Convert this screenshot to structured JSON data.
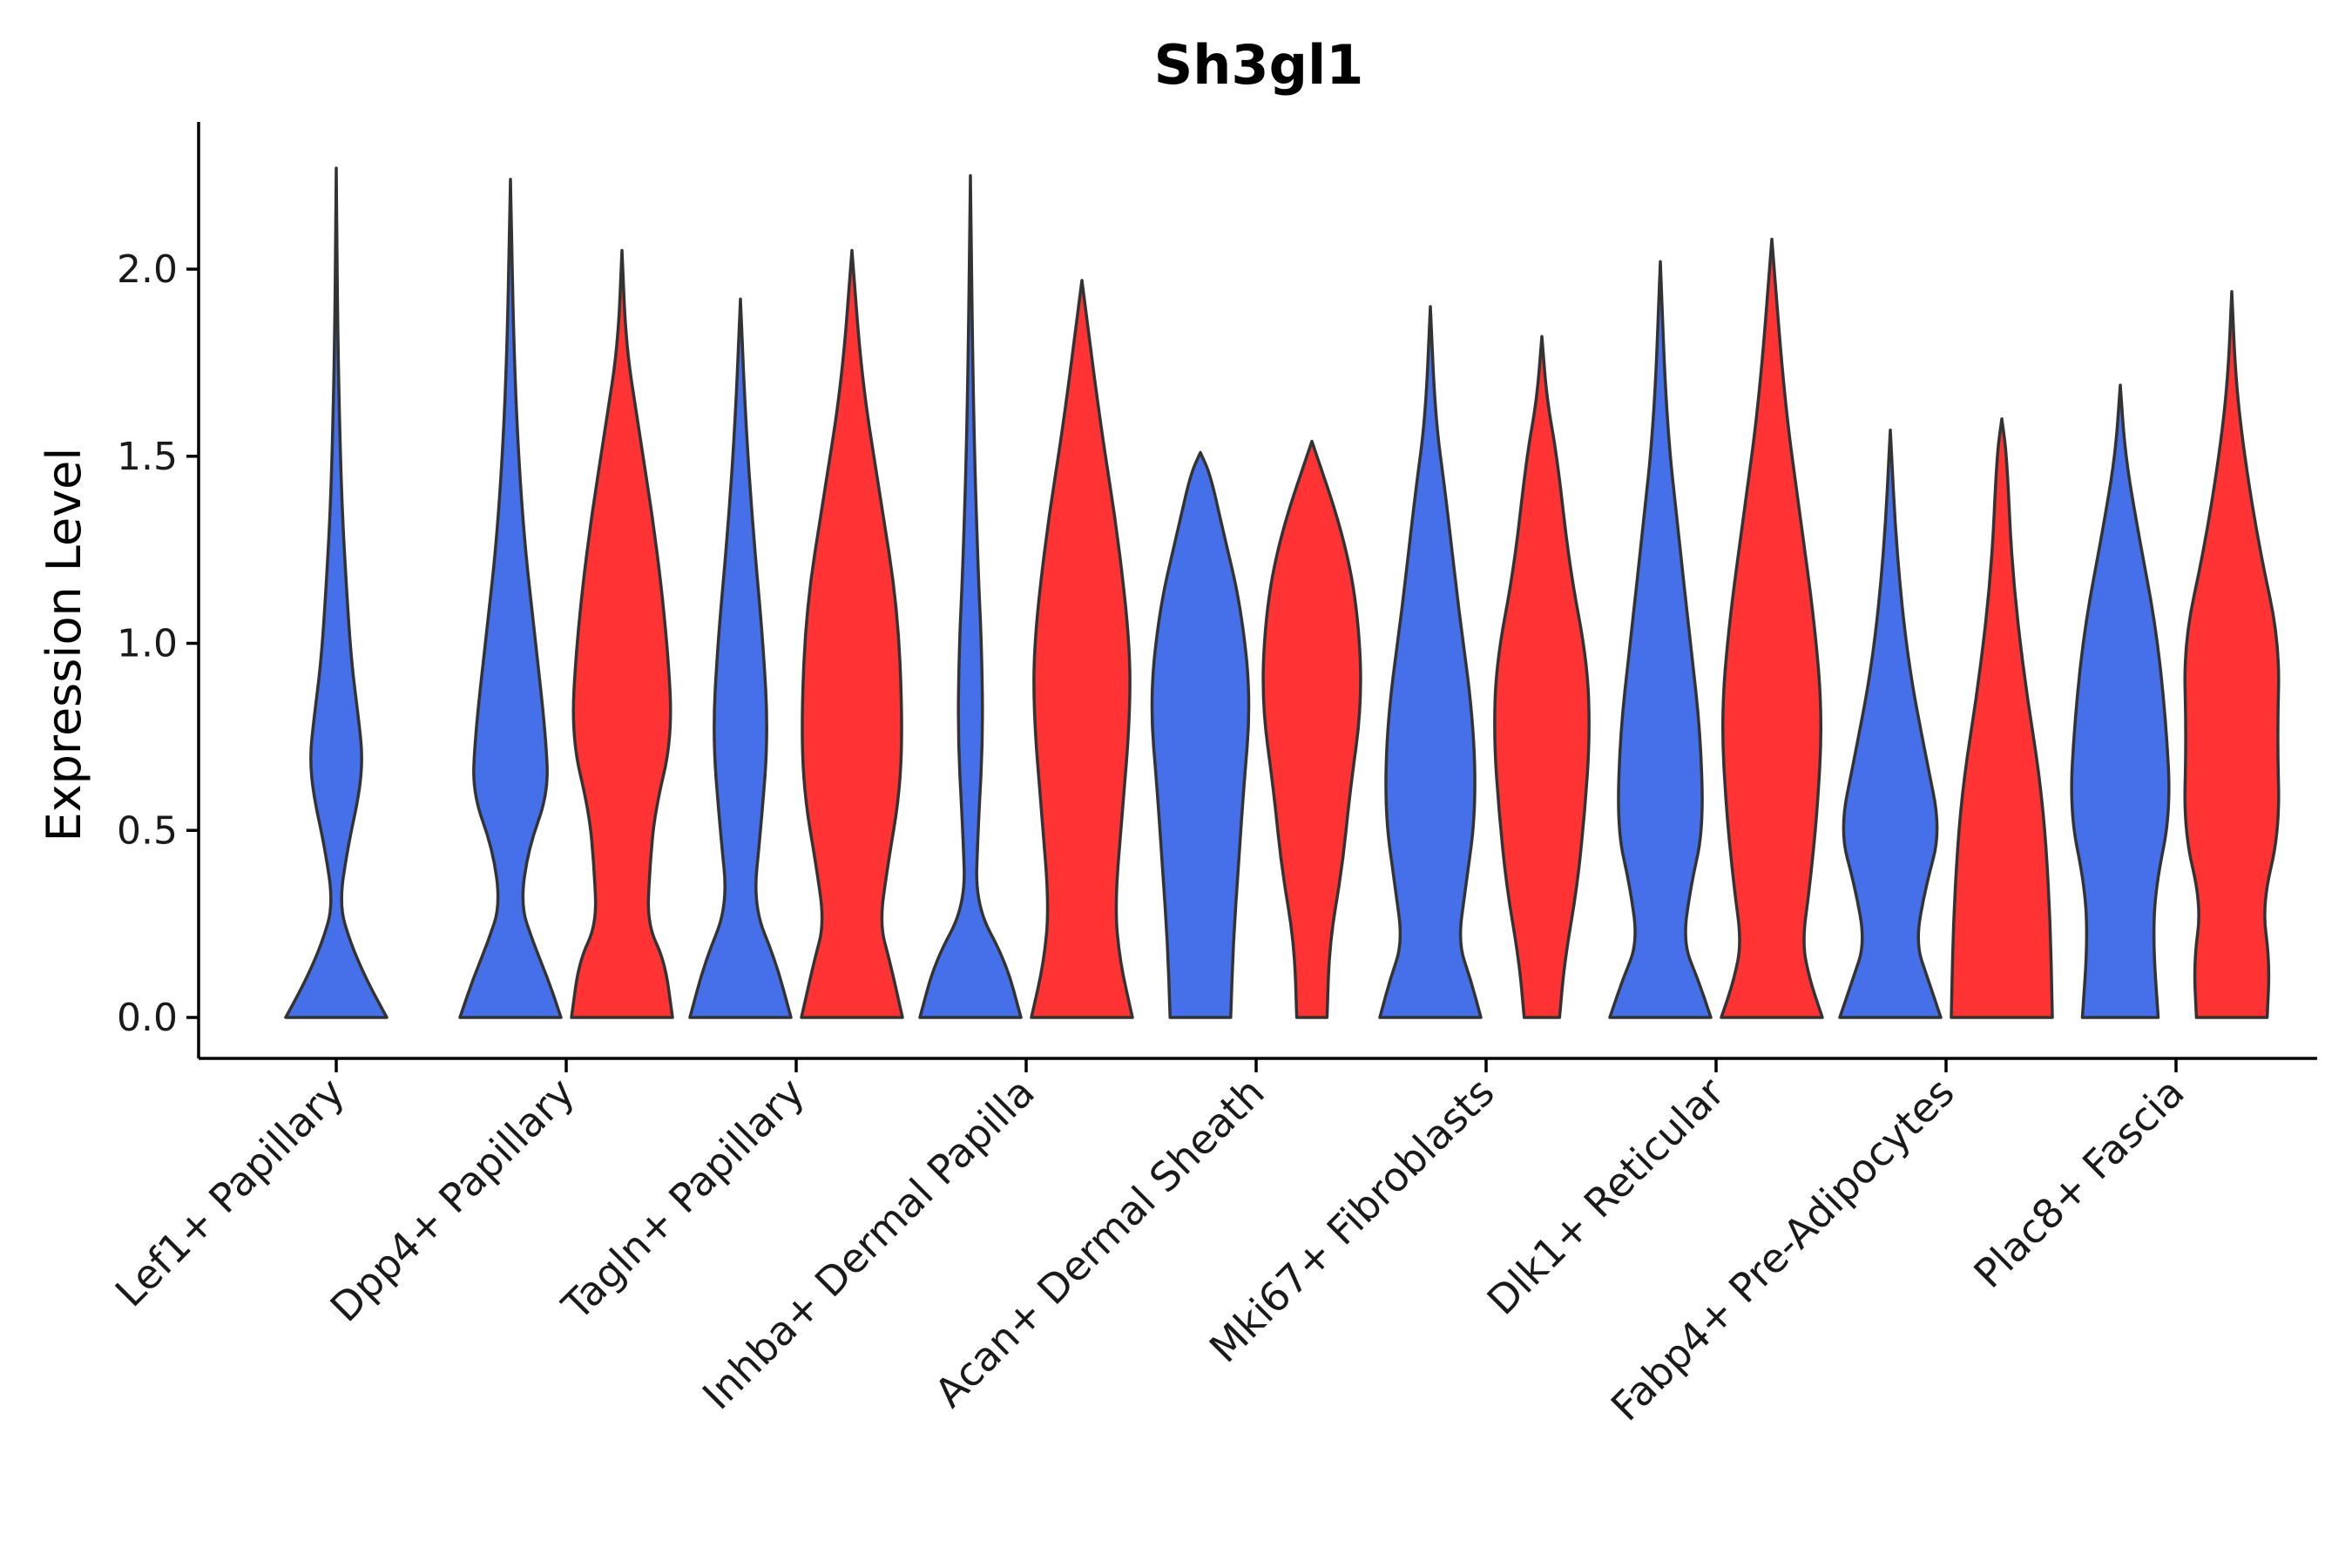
{
  "chart_data": {
    "type": "violin",
    "title": "Sh3gl1",
    "xlabel": "",
    "ylabel": "Expression Level",
    "ylim": [
      -0.12,
      2.4
    ],
    "yticks": [
      "0.0",
      "0.5",
      "1.0",
      "1.5",
      "2.0"
    ],
    "grid": false,
    "legend": "none",
    "colors": {
      "group1": "#4570EA",
      "group2": "#FF3333",
      "outline": "#333333"
    },
    "series": [
      {
        "name": "group1",
        "color": "#4570EA"
      },
      {
        "name": "group2",
        "color": "#FF3333"
      }
    ],
    "categories": [
      "Lef1+ Papillary",
      "Dpp4+ Papillary",
      "Tagln+ Papillary",
      "Inhba+ Dermal Papilla",
      "Acan+ Dermal Sheath",
      "Mki67+ Fibroblasts",
      "Dlk1+ Reticular",
      "Fabp4+ Pre-Adipocytes",
      "Plac8+ Fascia"
    ],
    "violins": [
      {
        "category": "Lef1+ Papillary",
        "series": "group1",
        "max": 2.27,
        "profile": [
          [
            0,
            1.0
          ],
          [
            0.1,
            0.6
          ],
          [
            0.2,
            0.28
          ],
          [
            0.3,
            0.06
          ],
          [
            0.45,
            0.22
          ],
          [
            0.6,
            0.46
          ],
          [
            0.7,
            0.52
          ],
          [
            0.8,
            0.44
          ],
          [
            0.95,
            0.3
          ],
          [
            1.15,
            0.2
          ],
          [
            1.4,
            0.1
          ],
          [
            1.8,
            0.03
          ],
          [
            2.27,
            0.0
          ]
        ]
      },
      {
        "category": "Dpp4+ Papillary",
        "series": "group1",
        "max": 2.24,
        "profile": [
          [
            0,
            1.0
          ],
          [
            0.1,
            0.75
          ],
          [
            0.2,
            0.45
          ],
          [
            0.3,
            0.2
          ],
          [
            0.45,
            0.35
          ],
          [
            0.6,
            0.75
          ],
          [
            0.75,
            0.7
          ],
          [
            1.0,
            0.5
          ],
          [
            1.3,
            0.25
          ],
          [
            1.7,
            0.08
          ],
          [
            2.24,
            0.0
          ]
        ]
      },
      {
        "category": "Dpp4+ Papillary",
        "series": "group2",
        "max": 2.05,
        "profile": [
          [
            0,
            1.0
          ],
          [
            0.15,
            0.85
          ],
          [
            0.25,
            0.5
          ],
          [
            0.4,
            0.55
          ],
          [
            0.55,
            0.65
          ],
          [
            0.75,
            1.0
          ],
          [
            1.0,
            0.9
          ],
          [
            1.3,
            0.65
          ],
          [
            1.6,
            0.3
          ],
          [
            1.8,
            0.08
          ],
          [
            2.05,
            0.0
          ]
        ]
      },
      {
        "category": "Tagln+ Papillary",
        "series": "group1",
        "max": 1.92,
        "profile": [
          [
            0,
            1.0
          ],
          [
            0.15,
            0.7
          ],
          [
            0.3,
            0.25
          ],
          [
            0.5,
            0.4
          ],
          [
            0.75,
            0.55
          ],
          [
            1.0,
            0.45
          ],
          [
            1.3,
            0.25
          ],
          [
            1.6,
            0.1
          ],
          [
            1.92,
            0.0
          ]
        ]
      },
      {
        "category": "Tagln+ Papillary",
        "series": "group2",
        "max": 2.05,
        "profile": [
          [
            0,
            1.0
          ],
          [
            0.15,
            0.75
          ],
          [
            0.25,
            0.55
          ],
          [
            0.4,
            0.7
          ],
          [
            0.6,
            0.95
          ],
          [
            0.8,
            1.0
          ],
          [
            1.1,
            0.9
          ],
          [
            1.4,
            0.55
          ],
          [
            1.7,
            0.2
          ],
          [
            2.05,
            0.0
          ]
        ]
      },
      {
        "category": "Inhba+ Dermal Papilla",
        "series": "group1",
        "max": 2.25,
        "profile": [
          [
            0,
            1.0
          ],
          [
            0.15,
            0.7
          ],
          [
            0.3,
            0.1
          ],
          [
            0.5,
            0.15
          ],
          [
            0.75,
            0.25
          ],
          [
            1.0,
            0.22
          ],
          [
            1.2,
            0.15
          ],
          [
            1.6,
            0.06
          ],
          [
            2.25,
            0.0
          ]
        ]
      },
      {
        "category": "Inhba+ Dermal Papilla",
        "series": "group2",
        "max": 1.97,
        "profile": [
          [
            0,
            1.0
          ],
          [
            0.15,
            0.75
          ],
          [
            0.3,
            0.65
          ],
          [
            0.55,
            0.8
          ],
          [
            0.8,
            0.95
          ],
          [
            1.0,
            0.95
          ],
          [
            1.3,
            0.7
          ],
          [
            1.6,
            0.35
          ],
          [
            1.97,
            0.0
          ]
        ]
      },
      {
        "category": "Acan+ Dermal Sheath",
        "series": "group1",
        "max": 1.51,
        "profile": [
          [
            0,
            0.6
          ],
          [
            0.2,
            0.65
          ],
          [
            0.4,
            0.75
          ],
          [
            0.6,
            0.85
          ],
          [
            0.85,
            1.0
          ],
          [
            1.1,
            0.8
          ],
          [
            1.3,
            0.45
          ],
          [
            1.45,
            0.2
          ],
          [
            1.51,
            0.0
          ]
        ]
      },
      {
        "category": "Acan+ Dermal Sheath",
        "series": "group2",
        "max": 1.54,
        "profile": [
          [
            0,
            0.3
          ],
          [
            0.2,
            0.35
          ],
          [
            0.4,
            0.6
          ],
          [
            0.6,
            0.75
          ],
          [
            0.85,
            1.0
          ],
          [
            1.1,
            0.9
          ],
          [
            1.3,
            0.6
          ],
          [
            1.54,
            0.0
          ]
        ]
      },
      {
        "category": "Mki67+ Fibroblasts",
        "series": "group1",
        "max": 1.9,
        "profile": [
          [
            0,
            1.0
          ],
          [
            0.1,
            0.8
          ],
          [
            0.2,
            0.55
          ],
          [
            0.35,
            0.7
          ],
          [
            0.55,
            0.9
          ],
          [
            0.8,
            0.85
          ],
          [
            1.1,
            0.55
          ],
          [
            1.4,
            0.3
          ],
          [
            1.6,
            0.1
          ],
          [
            1.9,
            0.0
          ]
        ]
      },
      {
        "category": "Mki67+ Fibroblasts",
        "series": "group2",
        "max": 1.82,
        "profile": [
          [
            0,
            0.35
          ],
          [
            0.15,
            0.45
          ],
          [
            0.35,
            0.7
          ],
          [
            0.55,
            0.85
          ],
          [
            0.75,
            0.95
          ],
          [
            0.95,
            0.9
          ],
          [
            1.2,
            0.55
          ],
          [
            1.5,
            0.3
          ],
          [
            1.65,
            0.1
          ],
          [
            1.82,
            0.0
          ]
        ]
      },
      {
        "category": "Dlk1+ Reticular",
        "series": "group1",
        "max": 2.02,
        "profile": [
          [
            0,
            1.0
          ],
          [
            0.1,
            0.75
          ],
          [
            0.2,
            0.45
          ],
          [
            0.35,
            0.6
          ],
          [
            0.5,
            0.85
          ],
          [
            0.75,
            0.8
          ],
          [
            1.0,
            0.6
          ],
          [
            1.3,
            0.35
          ],
          [
            1.6,
            0.12
          ],
          [
            2.02,
            0.0
          ]
        ]
      },
      {
        "category": "Dlk1+ Reticular",
        "series": "group2",
        "max": 2.08,
        "profile": [
          [
            0,
            1.0
          ],
          [
            0.1,
            0.75
          ],
          [
            0.2,
            0.6
          ],
          [
            0.35,
            0.75
          ],
          [
            0.55,
            0.9
          ],
          [
            0.8,
            1.0
          ],
          [
            1.05,
            0.85
          ],
          [
            1.35,
            0.55
          ],
          [
            1.65,
            0.25
          ],
          [
            2.08,
            0.0
          ]
        ]
      },
      {
        "category": "Fabp4+ Pre-Adipocytes",
        "series": "group1",
        "max": 1.57,
        "profile": [
          [
            0,
            1.0
          ],
          [
            0.1,
            0.75
          ],
          [
            0.2,
            0.5
          ],
          [
            0.35,
            0.7
          ],
          [
            0.5,
            1.0
          ],
          [
            0.7,
            0.7
          ],
          [
            0.95,
            0.35
          ],
          [
            1.25,
            0.12
          ],
          [
            1.57,
            0.0
          ]
        ]
      },
      {
        "category": "Fabp4+ Pre-Adipocytes",
        "series": "group2",
        "max": 1.6,
        "profile": [
          [
            0,
            1.0
          ],
          [
            0.3,
            0.95
          ],
          [
            0.6,
            0.8
          ],
          [
            0.9,
            0.45
          ],
          [
            1.2,
            0.2
          ],
          [
            1.5,
            0.1
          ],
          [
            1.6,
            0.0
          ]
        ]
      },
      {
        "category": "Plac8+ Fascia",
        "series": "group1",
        "max": 1.69,
        "profile": [
          [
            0,
            0.75
          ],
          [
            0.2,
            0.65
          ],
          [
            0.35,
            0.7
          ],
          [
            0.55,
            1.0
          ],
          [
            0.8,
            0.9
          ],
          [
            1.05,
            0.7
          ],
          [
            1.3,
            0.35
          ],
          [
            1.5,
            0.1
          ],
          [
            1.69,
            0.0
          ]
        ]
      },
      {
        "category": "Plac8+ Fascia",
        "series": "group2",
        "max": 1.94,
        "profile": [
          [
            0,
            0.7
          ],
          [
            0.15,
            0.75
          ],
          [
            0.3,
            0.6
          ],
          [
            0.5,
            0.95
          ],
          [
            0.75,
            0.9
          ],
          [
            1.0,
            0.95
          ],
          [
            1.25,
            0.55
          ],
          [
            1.5,
            0.25
          ],
          [
            1.7,
            0.08
          ],
          [
            1.94,
            0.0
          ]
        ]
      }
    ]
  }
}
